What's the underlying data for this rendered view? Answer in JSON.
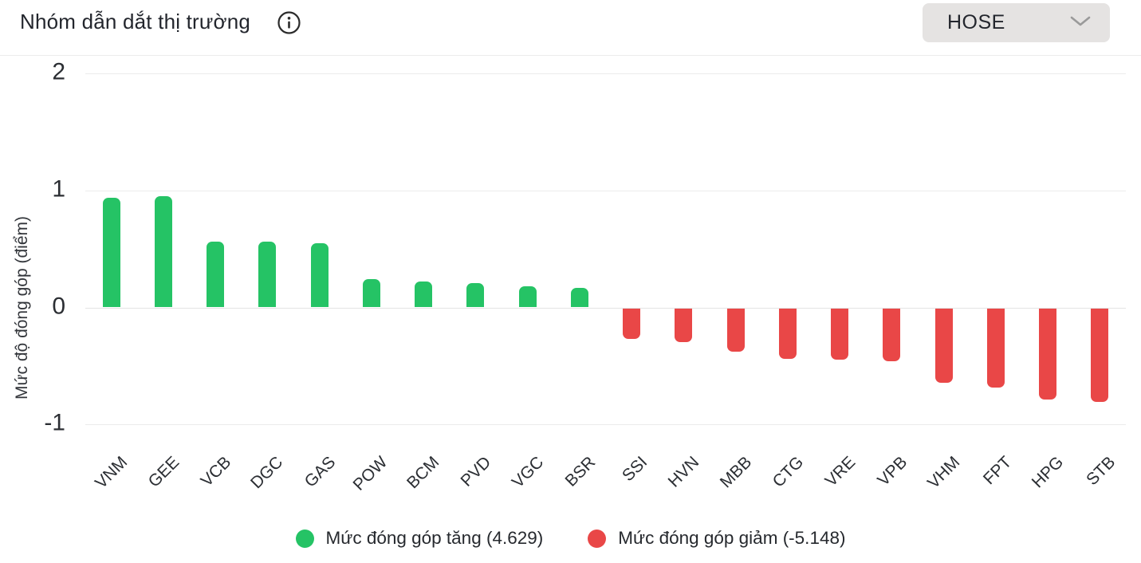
{
  "header": {
    "title": "Nhóm dẫn dắt thị trường",
    "exchange_dropdown": {
      "value": "HOSE"
    }
  },
  "chart_data": {
    "type": "bar",
    "title": "Nhóm dẫn dắt thị trường",
    "xlabel": "",
    "ylabel": "Mức độ đóng góp (điểm)",
    "ylim": [
      -1,
      2
    ],
    "yticks": [
      2,
      1,
      0,
      -1
    ],
    "grid": true,
    "legend_position": "bottom",
    "categories": [
      "VNM",
      "GEE",
      "VCB",
      "DGC",
      "GAS",
      "POW",
      "BCM",
      "PVD",
      "VGC",
      "BSR",
      "SSI",
      "HVN",
      "MBB",
      "CTG",
      "VRE",
      "VPB",
      "VHM",
      "FPT",
      "HPG",
      "STB"
    ],
    "values": [
      0.94,
      0.95,
      0.56,
      0.56,
      0.55,
      0.24,
      0.22,
      0.21,
      0.18,
      0.17,
      -0.26,
      -0.29,
      -0.37,
      -0.43,
      -0.44,
      -0.45,
      -0.64,
      -0.68,
      -0.78,
      -0.8
    ],
    "colors": {
      "positive": "#25c365",
      "negative": "#e94747"
    },
    "legend": [
      {
        "label": "Mức đóng góp tăng (4.629)",
        "color": "#25c365"
      },
      {
        "label": "Mức đóng góp giảm (-5.148)",
        "color": "#e94747"
      }
    ]
  }
}
